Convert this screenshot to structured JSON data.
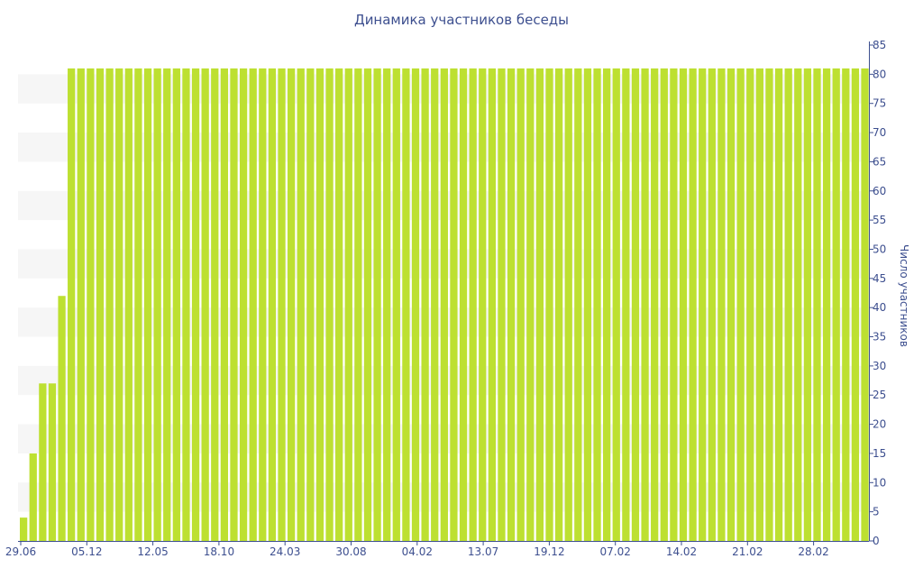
{
  "chart_data": {
    "type": "bar",
    "title": "Динамика участников беседы",
    "ylabel": "Число участников",
    "xlabel": "",
    "ylim": [
      0,
      85
    ],
    "y_ticks": [
      0,
      5,
      10,
      15,
      20,
      25,
      30,
      35,
      40,
      45,
      50,
      55,
      60,
      65,
      70,
      75,
      80,
      85
    ],
    "y_axis_position": "right",
    "grid": "alternating horizontal bands",
    "x_tick_labels": [
      "29.06",
      "05.12",
      "12.05",
      "18.10",
      "24.03",
      "30.08",
      "04.02",
      "13.07",
      "19.12",
      "07.02",
      "14.02",
      "21.02",
      "28.02"
    ],
    "values": [
      4,
      15,
      27,
      27,
      42,
      81,
      81,
      81,
      81,
      81,
      81,
      81,
      81,
      81,
      81,
      81,
      81,
      81,
      81,
      81,
      81,
      81,
      81,
      81,
      81,
      81,
      81,
      81,
      81,
      81,
      81,
      81,
      81,
      81,
      81,
      81,
      81,
      81,
      81,
      81,
      81,
      81,
      81,
      81,
      81,
      81,
      81,
      81,
      81,
      81,
      81,
      81,
      81,
      81,
      81,
      81,
      81,
      81,
      81,
      81,
      81,
      81,
      81,
      81,
      81,
      81,
      81,
      81,
      81,
      81,
      81,
      81,
      81,
      81,
      81,
      81,
      81,
      81,
      81,
      81,
      81,
      81,
      81,
      81,
      81,
      81,
      81,
      81,
      81
    ],
    "colors": {
      "bar": "#bde031",
      "band": "#f6f6f6",
      "axis": "#3d4f8f"
    }
  }
}
